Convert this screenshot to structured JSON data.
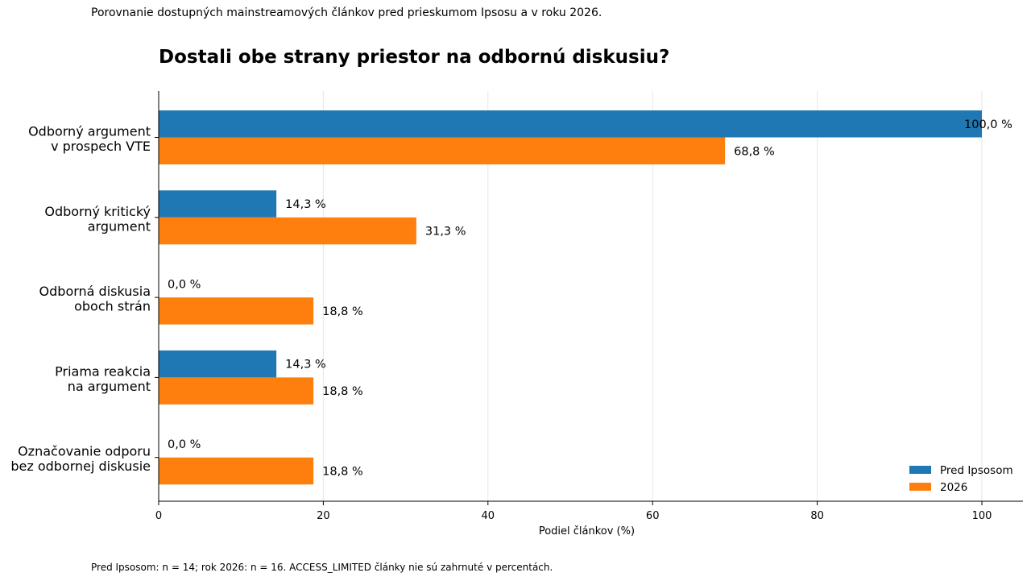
{
  "subtitle": "Porovnanie dostupných mainstreamových článkov pred prieskumom Ipsosu a v roku 2026.",
  "footnote": "Pred Ipsosom: n = 14; rok 2026: n = 16. ACCESS_LIMITED články nie sú zahrnuté v percentách.",
  "chart_data": {
    "type": "bar",
    "orientation": "horizontal",
    "title": "Dostali obe strany priestor na odbornú diskusiu?",
    "xlabel": "Podiel článkov (%)",
    "ylabel": "",
    "xlim": [
      0,
      105
    ],
    "xticks": [
      0,
      20,
      40,
      60,
      80,
      100
    ],
    "grid": "vertical",
    "legend_position": "bottom-right",
    "categories": [
      [
        "Odborný argument",
        "v prospech VTE"
      ],
      [
        "Odborný kritický",
        "argument"
      ],
      [
        "Odborná diskusia",
        "oboch strán"
      ],
      [
        "Priama reakcia",
        "na argument"
      ],
      [
        "Označovanie odporu",
        "bez odbornej diskusie"
      ]
    ],
    "series": [
      {
        "name": "Pred Ipsosom",
        "color": "#1f77b4",
        "values": [
          100.0,
          14.3,
          0.0,
          14.3,
          0.0
        ],
        "labels": [
          "100,0 %",
          "14,3 %",
          "0,0 %",
          "14,3 %",
          "0,0 %"
        ]
      },
      {
        "name": "2026",
        "color": "#ff7f0e",
        "values": [
          68.8,
          31.3,
          18.8,
          18.8,
          18.8
        ],
        "labels": [
          "68,8 %",
          "31,3 %",
          "18,8 %",
          "18,8 %",
          "18,8 %"
        ]
      }
    ]
  }
}
